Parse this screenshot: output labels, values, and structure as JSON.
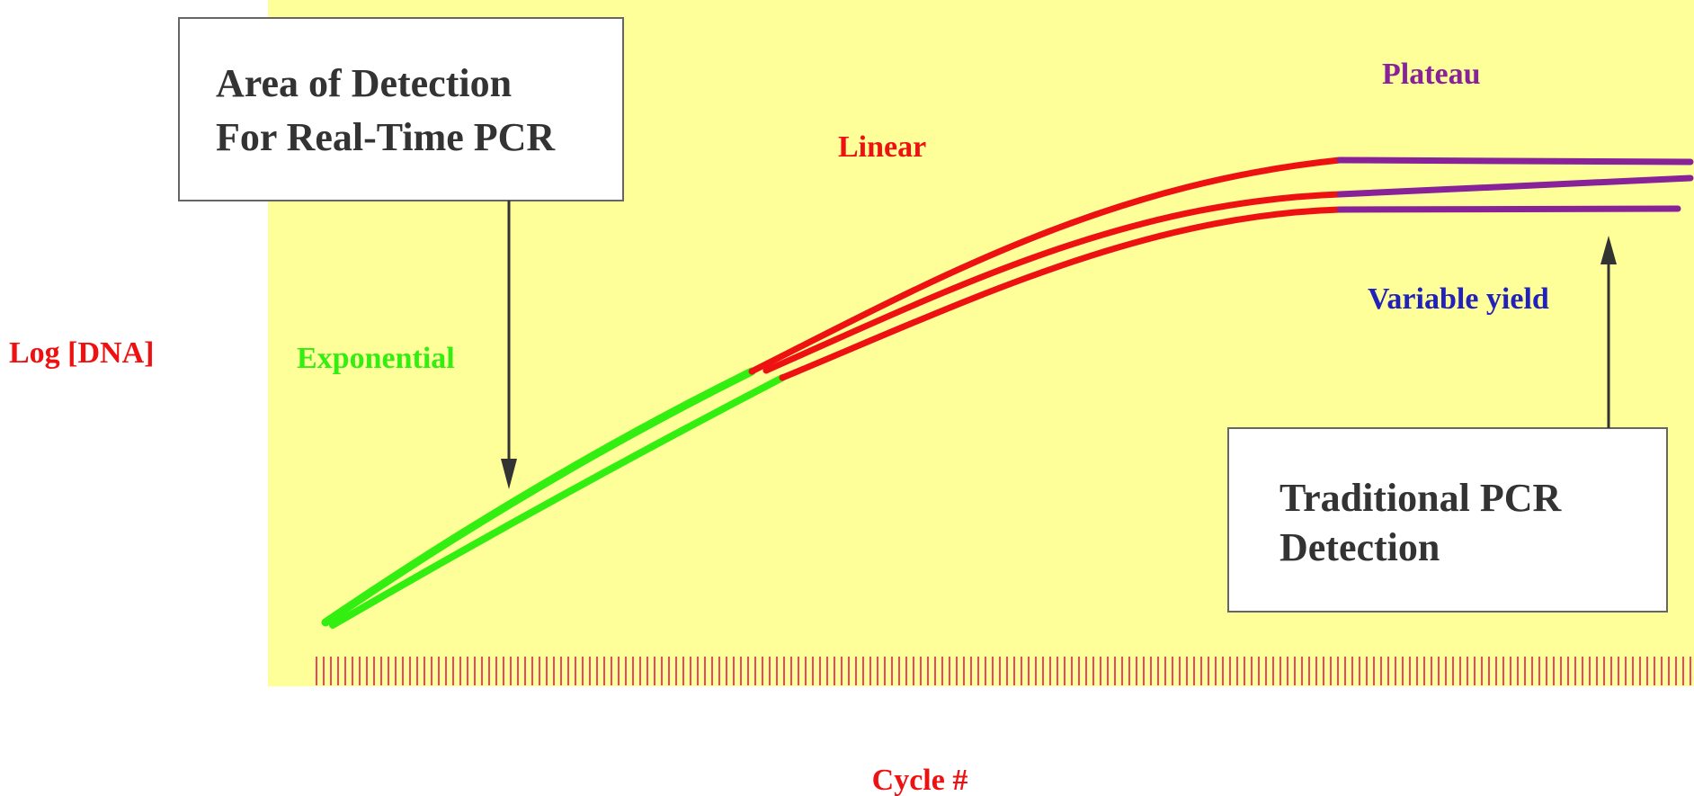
{
  "axes": {
    "ylabel": "Log [DNA]",
    "xlabel": "Cycle #"
  },
  "phases": {
    "exponential": "Exponential",
    "linear": "Linear",
    "plateau": "Plateau",
    "variable_yield": "Variable yield"
  },
  "callouts": {
    "realtime": {
      "line1": "Area of Detection",
      "line2": "For Real-Time PCR"
    },
    "traditional": {
      "line1": "Traditional PCR",
      "line2": "Detection"
    }
  },
  "colors": {
    "background": "#ffff99",
    "exponential": "#33ee11",
    "linear": "#ee1111",
    "plateau": "#882299",
    "variable_yield": "#2222bb",
    "ticks": "#ee4466",
    "label_red": "#ee1111"
  }
}
